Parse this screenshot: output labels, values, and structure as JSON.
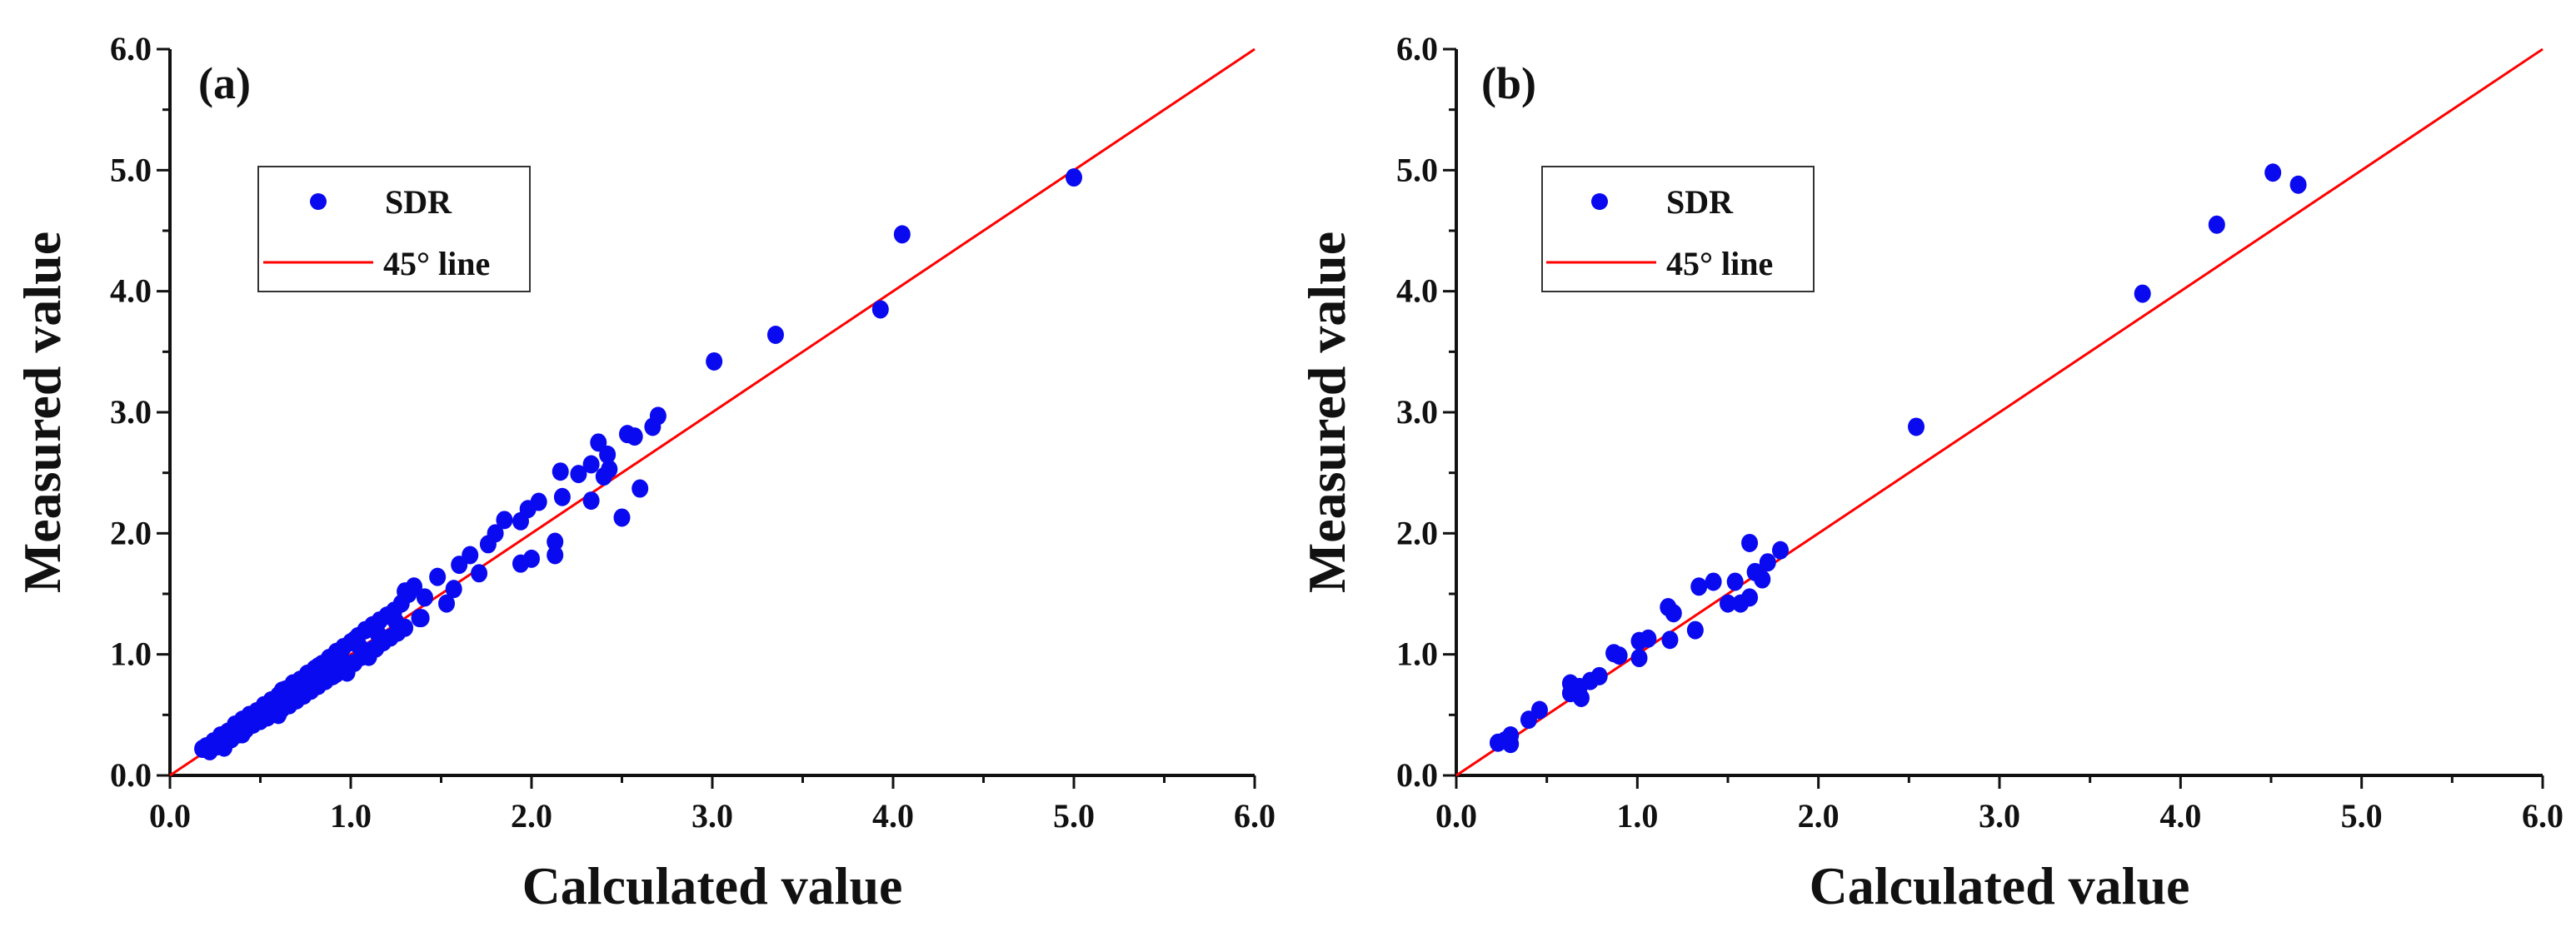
{
  "colors": {
    "points": "#0a0af0",
    "line": "#ff0000",
    "axis": "#111111"
  },
  "chart_data": [
    {
      "type": "scatter",
      "panel_label": "(a)",
      "xlabel": "Calculated value",
      "ylabel": "Measured value",
      "xlim": [
        0,
        6
      ],
      "ylim": [
        0,
        6
      ],
      "xticks": [
        "0.0",
        "1.0",
        "2.0",
        "3.0",
        "4.0",
        "5.0",
        "6.0"
      ],
      "yticks": [
        "0.0",
        "1.0",
        "2.0",
        "3.0",
        "4.0",
        "5.0",
        "6.0"
      ],
      "grid": false,
      "legend": {
        "placement": "upper-left",
        "entries": [
          "SDR",
          "45° line"
        ]
      },
      "reference_line": {
        "name": "45° line",
        "from": [
          0,
          0
        ],
        "to": [
          6,
          6
        ]
      },
      "series": [
        {
          "name": "SDR",
          "points": [
            [
              0.18,
              0.22
            ],
            [
              0.2,
              0.24
            ],
            [
              0.22,
              0.2
            ],
            [
              0.24,
              0.28
            ],
            [
              0.26,
              0.24
            ],
            [
              0.28,
              0.33
            ],
            [
              0.3,
              0.26
            ],
            [
              0.32,
              0.36
            ],
            [
              0.34,
              0.3
            ],
            [
              0.36,
              0.42
            ],
            [
              0.38,
              0.34
            ],
            [
              0.4,
              0.46
            ],
            [
              0.42,
              0.38
            ],
            [
              0.44,
              0.5
            ],
            [
              0.46,
              0.42
            ],
            [
              0.48,
              0.53
            ],
            [
              0.5,
              0.45
            ],
            [
              0.52,
              0.58
            ],
            [
              0.54,
              0.48
            ],
            [
              0.56,
              0.62
            ],
            [
              0.58,
              0.52
            ],
            [
              0.6,
              0.66
            ],
            [
              0.62,
              0.55
            ],
            [
              0.64,
              0.71
            ],
            [
              0.66,
              0.58
            ],
            [
              0.68,
              0.76
            ],
            [
              0.7,
              0.62
            ],
            [
              0.72,
              0.79
            ],
            [
              0.74,
              0.66
            ],
            [
              0.76,
              0.84
            ],
            [
              0.78,
              0.7
            ],
            [
              0.8,
              0.88
            ],
            [
              0.82,
              0.74
            ],
            [
              0.84,
              0.92
            ],
            [
              0.86,
              0.78
            ],
            [
              0.88,
              0.97
            ],
            [
              0.9,
              0.82
            ],
            [
              0.92,
              1.02
            ],
            [
              0.94,
              0.86
            ],
            [
              0.96,
              1.06
            ],
            [
              0.98,
              0.9
            ],
            [
              1.0,
              1.1
            ],
            [
              1.02,
              0.93
            ],
            [
              1.04,
              1.15
            ],
            [
              1.06,
              0.98
            ],
            [
              1.08,
              1.2
            ],
            [
              1.1,
              1.02
            ],
            [
              1.12,
              1.24
            ],
            [
              1.14,
              1.05
            ],
            [
              1.16,
              1.28
            ],
            [
              1.18,
              1.1
            ],
            [
              1.2,
              1.32
            ],
            [
              1.22,
              1.14
            ],
            [
              1.24,
              1.36
            ],
            [
              1.26,
              1.18
            ],
            [
              1.28,
              1.42
            ],
            [
              1.3,
              1.22
            ],
            [
              1.32,
              1.5
            ],
            [
              1.35,
              1.56
            ],
            [
              1.38,
              1.3
            ],
            [
              0.45,
              0.47
            ],
            [
              0.55,
              0.56
            ],
            [
              0.65,
              0.66
            ],
            [
              0.75,
              0.76
            ],
            [
              0.85,
              0.86
            ],
            [
              0.95,
              0.96
            ],
            [
              1.05,
              1.06
            ],
            [
              1.15,
              1.17
            ],
            [
              1.25,
              1.27
            ],
            [
              0.35,
              0.37
            ],
            [
              0.62,
              0.7
            ],
            [
              0.82,
              0.9
            ],
            [
              1.02,
              1.12
            ],
            [
              0.92,
              0.84
            ],
            [
              1.12,
              1.04
            ],
            [
              0.98,
              0.85
            ],
            [
              1.1,
              0.98
            ],
            [
              0.6,
              0.5
            ],
            [
              0.4,
              0.34
            ],
            [
              0.3,
              0.23
            ],
            [
              1.3,
              1.52
            ],
            [
              1.35,
              1.56
            ],
            [
              1.41,
              1.47
            ],
            [
              1.39,
              1.3
            ],
            [
              1.48,
              1.64
            ],
            [
              1.53,
              1.42
            ],
            [
              1.57,
              1.54
            ],
            [
              1.6,
              1.74
            ],
            [
              1.66,
              1.82
            ],
            [
              1.71,
              1.67
            ],
            [
              1.76,
              1.91
            ],
            [
              1.8,
              2.0
            ],
            [
              1.85,
              2.11
            ],
            [
              1.94,
              2.1
            ],
            [
              1.98,
              2.2
            ],
            [
              2.04,
              2.26
            ],
            [
              1.94,
              1.75
            ],
            [
              2.0,
              1.79
            ],
            [
              2.13,
              1.93
            ],
            [
              2.13,
              1.82
            ],
            [
              2.16,
              2.51
            ],
            [
              2.17,
              2.3
            ],
            [
              2.26,
              2.49
            ],
            [
              2.33,
              2.57
            ],
            [
              2.33,
              2.27
            ],
            [
              2.37,
              2.75
            ],
            [
              2.4,
              2.47
            ],
            [
              2.42,
              2.65
            ],
            [
              2.43,
              2.53
            ],
            [
              2.5,
              2.13
            ],
            [
              2.53,
              2.82
            ],
            [
              2.57,
              2.8
            ],
            [
              2.6,
              2.37
            ],
            [
              2.67,
              2.88
            ],
            [
              2.7,
              2.97
            ],
            [
              3.01,
              3.42
            ],
            [
              3.35,
              3.64
            ],
            [
              3.93,
              3.85
            ],
            [
              4.05,
              4.47
            ],
            [
              5.0,
              4.94
            ]
          ]
        }
      ]
    },
    {
      "type": "scatter",
      "panel_label": "(b)",
      "xlabel": "Calculated value",
      "ylabel": "Measured value",
      "xlim": [
        0,
        6
      ],
      "ylim": [
        0,
        6
      ],
      "xticks": [
        "0.0",
        "1.0",
        "2.0",
        "3.0",
        "4.0",
        "5.0",
        "6.0"
      ],
      "yticks": [
        "0.0",
        "1.0",
        "2.0",
        "3.0",
        "4.0",
        "5.0",
        "6.0"
      ],
      "grid": false,
      "legend": {
        "placement": "upper-left",
        "entries": [
          "SDR",
          "45° line"
        ]
      },
      "reference_line": {
        "name": "45° line",
        "from": [
          0,
          0
        ],
        "to": [
          6,
          6
        ]
      },
      "series": [
        {
          "name": "SDR",
          "points": [
            [
              0.23,
              0.27
            ],
            [
              0.27,
              0.29
            ],
            [
              0.3,
              0.33
            ],
            [
              0.3,
              0.26
            ],
            [
              0.4,
              0.46
            ],
            [
              0.46,
              0.54
            ],
            [
              0.63,
              0.76
            ],
            [
              0.63,
              0.68
            ],
            [
              0.69,
              0.64
            ],
            [
              0.68,
              0.73
            ],
            [
              0.74,
              0.78
            ],
            [
              0.79,
              0.82
            ],
            [
              0.87,
              1.01
            ],
            [
              0.9,
              0.99
            ],
            [
              1.01,
              0.97
            ],
            [
              1.01,
              1.11
            ],
            [
              1.06,
              1.13
            ],
            [
              1.18,
              1.12
            ],
            [
              1.17,
              1.39
            ],
            [
              1.2,
              1.34
            ],
            [
              1.32,
              1.2
            ],
            [
              1.34,
              1.56
            ],
            [
              1.42,
              1.6
            ],
            [
              1.5,
              1.42
            ],
            [
              1.54,
              1.6
            ],
            [
              1.57,
              1.42
            ],
            [
              1.62,
              1.47
            ],
            [
              1.62,
              1.92
            ],
            [
              1.65,
              1.68
            ],
            [
              1.69,
              1.62
            ],
            [
              1.72,
              1.76
            ],
            [
              1.79,
              1.86
            ],
            [
              2.54,
              2.88
            ],
            [
              3.79,
              3.98
            ],
            [
              4.2,
              4.55
            ],
            [
              4.51,
              4.98
            ],
            [
              4.65,
              4.88
            ]
          ]
        }
      ]
    }
  ]
}
